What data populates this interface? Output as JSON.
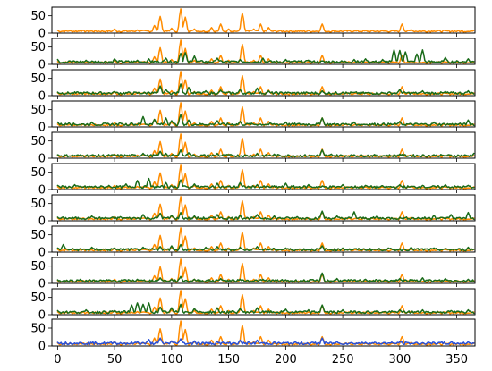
{
  "chart_data": {
    "type": "line",
    "layout": "11 vertically stacked panels sharing the x axis",
    "title": "",
    "xlabel": "",
    "ylabel": "",
    "xlim": [
      -5,
      366
    ],
    "ylim": [
      0,
      75
    ],
    "x_ticks": [
      0,
      50,
      100,
      150,
      200,
      250,
      300,
      350
    ],
    "y_ticks": [
      0,
      50
    ],
    "legend": "none",
    "grid": false,
    "colors": {
      "reference": "#ff8c00",
      "green": "#1a6b1a",
      "blue": "#2850d8"
    },
    "reference_peaks": [
      [
        0,
        8
      ],
      [
        10,
        6
      ],
      [
        20,
        7
      ],
      [
        50,
        12
      ],
      [
        70,
        9
      ],
      [
        85,
        22
      ],
      [
        90,
        48
      ],
      [
        100,
        14
      ],
      [
        108,
        70
      ],
      [
        112,
        46
      ],
      [
        120,
        12
      ],
      [
        135,
        16
      ],
      [
        143,
        26
      ],
      [
        150,
        12
      ],
      [
        162,
        58
      ],
      [
        172,
        12
      ],
      [
        178,
        26
      ],
      [
        185,
        16
      ],
      [
        220,
        8
      ],
      [
        232,
        26
      ],
      [
        260,
        6
      ],
      [
        302,
        26
      ],
      [
        310,
        10
      ],
      [
        330,
        6
      ],
      [
        360,
        5
      ]
    ],
    "panels": [
      {
        "series": [
          {
            "color": "reference"
          }
        ]
      },
      {
        "series": [
          {
            "color": "reference"
          },
          {
            "color": "green",
            "peaks": [
              [
                0,
                14
              ],
              [
                10,
                10
              ],
              [
                25,
                12
              ],
              [
                50,
                16
              ],
              [
                70,
                12
              ],
              [
                80,
                16
              ],
              [
                95,
                18
              ],
              [
                108,
                32
              ],
              [
                112,
                34
              ],
              [
                120,
                24
              ],
              [
                140,
                18
              ],
              [
                160,
                14
              ],
              [
                180,
                18
              ],
              [
                200,
                14
              ],
              [
                220,
                12
              ],
              [
                260,
                14
              ],
              [
                270,
                16
              ],
              [
                285,
                14
              ],
              [
                295,
                42
              ],
              [
                300,
                40
              ],
              [
                305,
                36
              ],
              [
                315,
                30
              ],
              [
                320,
                42
              ],
              [
                340,
                20
              ],
              [
                360,
                16
              ]
            ]
          }
        ]
      },
      {
        "series": [
          {
            "color": "reference"
          },
          {
            "color": "green",
            "peaks": [
              [
                0,
                10
              ],
              [
                20,
                9
              ],
              [
                50,
                12
              ],
              [
                80,
                10
              ],
              [
                90,
                28
              ],
              [
                95,
                18
              ],
              [
                108,
                34
              ],
              [
                115,
                24
              ],
              [
                130,
                14
              ],
              [
                143,
                16
              ],
              [
                160,
                18
              ],
              [
                175,
                22
              ],
              [
                185,
                14
              ],
              [
                200,
                10
              ],
              [
                232,
                14
              ],
              [
                250,
                10
              ],
              [
                300,
                18
              ],
              [
                320,
                14
              ],
              [
                340,
                12
              ],
              [
                360,
                14
              ]
            ]
          }
        ]
      },
      {
        "series": [
          {
            "color": "reference"
          },
          {
            "color": "green",
            "peaks": [
              [
                0,
                14
              ],
              [
                10,
                12
              ],
              [
                30,
                14
              ],
              [
                55,
                12
              ],
              [
                65,
                12
              ],
              [
                75,
                30
              ],
              [
                85,
                22
              ],
              [
                95,
                26
              ],
              [
                100,
                18
              ],
              [
                108,
                36
              ],
              [
                115,
                20
              ],
              [
                140,
                18
              ],
              [
                160,
                16
              ],
              [
                200,
                14
              ],
              [
                232,
                26
              ],
              [
                260,
                14
              ],
              [
                300,
                16
              ],
              [
                330,
                14
              ],
              [
                360,
                20
              ]
            ]
          }
        ]
      },
      {
        "series": [
          {
            "color": "reference"
          },
          {
            "color": "green",
            "peaks": [
              [
                0,
                10
              ],
              [
                25,
                8
              ],
              [
                50,
                10
              ],
              [
                75,
                14
              ],
              [
                90,
                20
              ],
              [
                95,
                14
              ],
              [
                108,
                24
              ],
              [
                115,
                16
              ],
              [
                140,
                14
              ],
              [
                150,
                10
              ],
              [
                175,
                14
              ],
              [
                190,
                12
              ],
              [
                232,
                24
              ],
              [
                240,
                12
              ],
              [
                260,
                10
              ],
              [
                300,
                12
              ],
              [
                330,
                10
              ],
              [
                365,
                14
              ]
            ]
          }
        ]
      },
      {
        "series": [
          {
            "color": "reference"
          },
          {
            "color": "green",
            "peaks": [
              [
                0,
                12
              ],
              [
                15,
                14
              ],
              [
                45,
                12
              ],
              [
                60,
                16
              ],
              [
                70,
                26
              ],
              [
                80,
                32
              ],
              [
                95,
                20
              ],
              [
                108,
                28
              ],
              [
                120,
                16
              ],
              [
                140,
                18
              ],
              [
                160,
                20
              ],
              [
                175,
                14
              ],
              [
                200,
                18
              ],
              [
                220,
                14
              ],
              [
                250,
                14
              ],
              [
                270,
                12
              ],
              [
                300,
                14
              ],
              [
                320,
                12
              ],
              [
                340,
                14
              ],
              [
                360,
                12
              ]
            ]
          }
        ]
      },
      {
        "series": [
          {
            "color": "reference"
          },
          {
            "color": "green",
            "peaks": [
              [
                0,
                10
              ],
              [
                30,
                14
              ],
              [
                55,
                12
              ],
              [
                75,
                18
              ],
              [
                90,
                22
              ],
              [
                100,
                16
              ],
              [
                108,
                24
              ],
              [
                120,
                14
              ],
              [
                140,
                18
              ],
              [
                160,
                16
              ],
              [
                175,
                18
              ],
              [
                190,
                14
              ],
              [
                210,
                12
              ],
              [
                232,
                28
              ],
              [
                245,
                14
              ],
              [
                260,
                26
              ],
              [
                280,
                14
              ],
              [
                330,
                16
              ],
              [
                345,
                18
              ],
              [
                360,
                24
              ]
            ]
          }
        ]
      },
      {
        "series": [
          {
            "color": "reference"
          },
          {
            "color": "green",
            "peaks": [
              [
                0,
                12
              ],
              [
                5,
                22
              ],
              [
                30,
                14
              ],
              [
                50,
                12
              ],
              [
                75,
                14
              ],
              [
                90,
                16
              ],
              [
                100,
                18
              ],
              [
                108,
                22
              ],
              [
                130,
                14
              ],
              [
                140,
                16
              ],
              [
                160,
                14
              ],
              [
                175,
                16
              ],
              [
                200,
                12
              ],
              [
                232,
                18
              ],
              [
                250,
                12
              ],
              [
                290,
                12
              ],
              [
                310,
                14
              ],
              [
                330,
                12
              ],
              [
                360,
                14
              ]
            ]
          }
        ]
      },
      {
        "series": [
          {
            "color": "reference"
          },
          {
            "color": "green",
            "peaks": [
              [
                0,
                10
              ],
              [
                20,
                12
              ],
              [
                45,
                10
              ],
              [
                70,
                12
              ],
              [
                90,
                16
              ],
              [
                100,
                12
              ],
              [
                108,
                20
              ],
              [
                120,
                12
              ],
              [
                143,
                14
              ],
              [
                160,
                12
              ],
              [
                180,
                12
              ],
              [
                200,
                10
              ],
              [
                232,
                30
              ],
              [
                245,
                14
              ],
              [
                270,
                12
              ],
              [
                300,
                14
              ],
              [
                320,
                16
              ],
              [
                340,
                14
              ],
              [
                360,
                12
              ]
            ]
          }
        ]
      },
      {
        "series": [
          {
            "color": "reference"
          },
          {
            "color": "green",
            "peaks": [
              [
                0,
                12
              ],
              [
                25,
                14
              ],
              [
                50,
                12
              ],
              [
                65,
                28
              ],
              [
                70,
                34
              ],
              [
                75,
                30
              ],
              [
                80,
                34
              ],
              [
                90,
                22
              ],
              [
                100,
                20
              ],
              [
                108,
                30
              ],
              [
                120,
                18
              ],
              [
                140,
                20
              ],
              [
                160,
                18
              ],
              [
                175,
                20
              ],
              [
                200,
                16
              ],
              [
                220,
                14
              ],
              [
                232,
                28
              ],
              [
                250,
                14
              ],
              [
                280,
                12
              ],
              [
                300,
                14
              ],
              [
                320,
                14
              ],
              [
                345,
                12
              ],
              [
                360,
                14
              ]
            ]
          }
        ]
      },
      {
        "series": [
          {
            "color": "reference"
          },
          {
            "color": "blue",
            "peaks": [
              [
                0,
                10
              ],
              [
                15,
                8
              ],
              [
                30,
                8
              ],
              [
                50,
                10
              ],
              [
                70,
                12
              ],
              [
                80,
                18
              ],
              [
                90,
                22
              ],
              [
                100,
                14
              ],
              [
                108,
                20
              ],
              [
                120,
                14
              ],
              [
                140,
                12
              ],
              [
                160,
                16
              ],
              [
                175,
                16
              ],
              [
                190,
                12
              ],
              [
                232,
                22
              ],
              [
                245,
                12
              ],
              [
                270,
                10
              ],
              [
                300,
                12
              ],
              [
                330,
                10
              ],
              [
                360,
                12
              ]
            ]
          }
        ]
      }
    ]
  }
}
